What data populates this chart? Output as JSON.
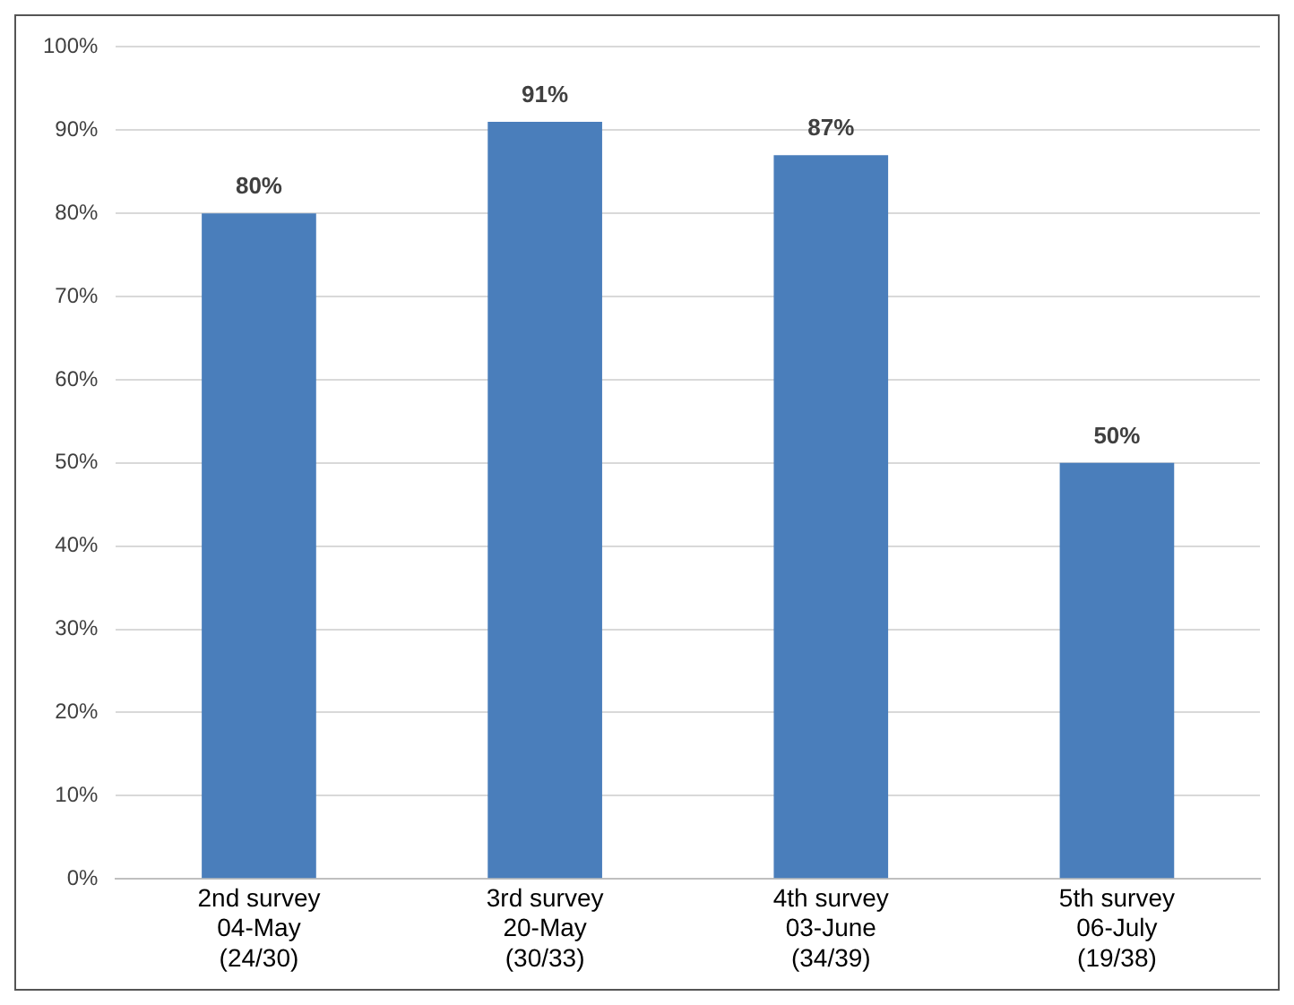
{
  "chart_data": {
    "type": "bar",
    "categories": [
      "2nd survey\n04-May\n(24/30)",
      "3rd survey\n20-May\n(30/33)",
      "4th survey\n03-June\n(34/39)",
      "5th survey\n06-July\n(19/38)"
    ],
    "values": [
      80,
      91,
      87,
      50
    ],
    "value_labels": [
      "80%",
      "91%",
      "87%",
      "50%"
    ],
    "color": "#4a7ebb",
    "ylim": [
      0,
      100
    ],
    "yticks": [
      {
        "value": 0,
        "label": "0%"
      },
      {
        "value": 10,
        "label": "10%"
      },
      {
        "value": 20,
        "label": "20%"
      },
      {
        "value": 30,
        "label": "30%"
      },
      {
        "value": 40,
        "label": "40%"
      },
      {
        "value": 50,
        "label": "50%"
      },
      {
        "value": 60,
        "label": "60%"
      },
      {
        "value": 70,
        "label": "70%"
      },
      {
        "value": 80,
        "label": "80%"
      },
      {
        "value": 90,
        "label": "90%"
      },
      {
        "value": 100,
        "label": "100%"
      }
    ],
    "grid": "y",
    "legend": false
  }
}
